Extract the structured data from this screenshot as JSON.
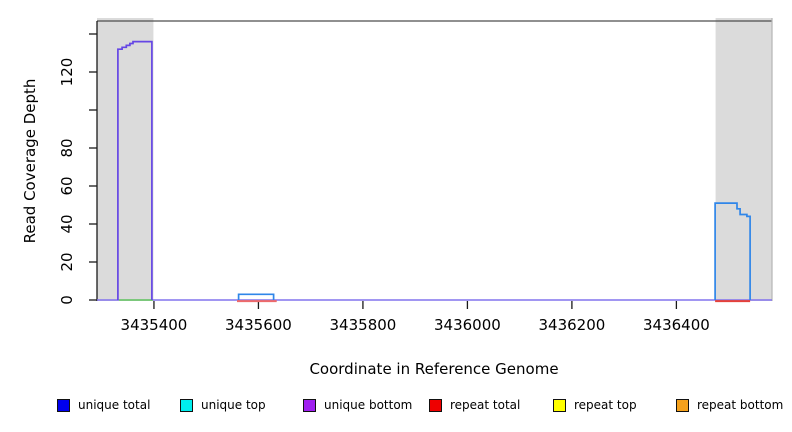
{
  "chart_data": {
    "type": "line",
    "title": "",
    "xlabel": "Coordinate in Reference Genome",
    "ylabel": "Read Coverage Depth",
    "xlim": [
      3435291,
      3436583
    ],
    "ylim": [
      0,
      140
    ],
    "grid": "off",
    "x_ticks": [
      {
        "value": 3435400,
        "label": "3435400"
      },
      {
        "value": 3435600,
        "label": "3435600"
      },
      {
        "value": 3435800,
        "label": "3435800"
      },
      {
        "value": 3436000,
        "label": "3436000"
      },
      {
        "value": 3436200,
        "label": "3436200"
      },
      {
        "value": 3436400,
        "label": "3436400"
      }
    ],
    "y_ticks": [
      {
        "value": 0,
        "label": "0"
      },
      {
        "value": 20,
        "label": "20"
      },
      {
        "value": 40,
        "label": "40"
      },
      {
        "value": 60,
        "label": "60"
      },
      {
        "value": 80,
        "label": "80"
      },
      {
        "value": 100,
        "label": ""
      },
      {
        "value": 120,
        "label": "120"
      },
      {
        "value": 140,
        "label": ""
      }
    ],
    "shaded_regions": [
      {
        "x0": 3435291,
        "x1": 3435399,
        "color": "#DBDBDB"
      },
      {
        "x0": 3436475,
        "x1": 3436583,
        "color": "#DBDBDB"
      }
    ],
    "series": [
      {
        "name": "zero-baseline",
        "color": "#8273EE",
        "width": 1.6,
        "points": [
          [
            3435291,
            0
          ],
          [
            3436583,
            0
          ]
        ]
      },
      {
        "name": "zero-overlap-left-green",
        "color": "#7CC87C",
        "width": 2,
        "points": [
          [
            3435333,
            0
          ],
          [
            3435398,
            0
          ]
        ]
      },
      {
        "name": "zero-repeat-mid-red",
        "color": "#EE6A6A",
        "width": 2,
        "points": [
          [
            3435559,
            -0.6
          ],
          [
            3435635,
            -0.6
          ]
        ]
      },
      {
        "name": "zero-repeat-right-red",
        "color": "#E5413A",
        "width": 2,
        "points": [
          [
            3436474,
            -0.6
          ],
          [
            3436541,
            -0.6
          ]
        ]
      },
      {
        "name": "unique-bottom-left-peak",
        "color": "#6546E5",
        "width": 1.7,
        "points": [
          [
            3435331,
            0
          ],
          [
            3435331,
            132
          ],
          [
            3435339,
            132
          ],
          [
            3435339,
            133
          ],
          [
            3435347,
            133
          ],
          [
            3435347,
            134
          ],
          [
            3435354,
            134
          ],
          [
            3435354,
            135
          ],
          [
            3435360,
            135
          ],
          [
            3435360,
            136
          ],
          [
            3435396,
            136
          ],
          [
            3435396,
            0
          ]
        ]
      },
      {
        "name": "unique-total-small-bump",
        "color": "#2F86E9",
        "width": 1.7,
        "points": [
          [
            3435562,
            0
          ],
          [
            3435562,
            3
          ],
          [
            3435629,
            3
          ],
          [
            3435629,
            0
          ]
        ]
      },
      {
        "name": "unique-total-right-peak",
        "color": "#2F86E9",
        "width": 1.7,
        "points": [
          [
            3436474,
            0
          ],
          [
            3436474,
            51
          ],
          [
            3436516,
            51
          ],
          [
            3436516,
            48
          ],
          [
            3436522,
            48
          ],
          [
            3436522,
            45
          ],
          [
            3436535,
            45
          ],
          [
            3436535,
            44
          ],
          [
            3436541,
            44
          ],
          [
            3436541,
            0
          ]
        ]
      }
    ],
    "legend_position": "bottom",
    "legend": [
      {
        "label": "unique total",
        "color": "#0000EE"
      },
      {
        "label": "unique top",
        "color": "#00EEEE"
      },
      {
        "label": "unique bottom",
        "color": "#A020F0"
      },
      {
        "label": "repeat total",
        "color": "#EE0000"
      },
      {
        "label": "repeat top",
        "color": "#FFFF00"
      },
      {
        "label": "repeat bottom",
        "color": "#F5A11C"
      }
    ],
    "colors": {
      "shaded_band": "#DBDBDB",
      "box_top": "#4D4D4D",
      "axis": "#1A1A1A",
      "box_right": "#B4B4B4",
      "text": "#000000"
    }
  }
}
